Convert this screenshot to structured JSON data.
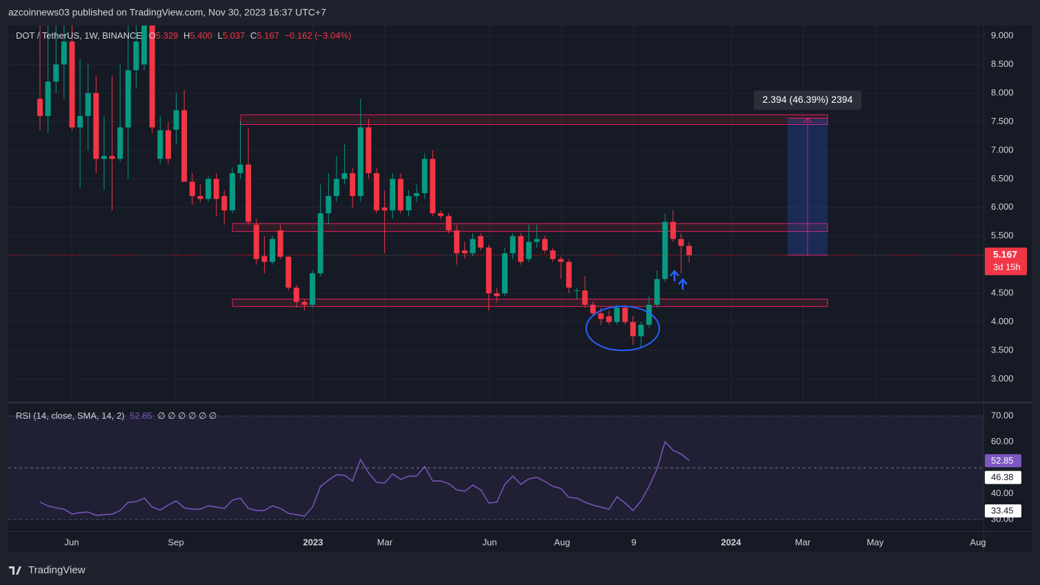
{
  "header": {
    "publisher": "azcoinnews03 published on TradingView.com, Nov 30, 2023 16:37 UTC+7"
  },
  "footer": {
    "brand": "TradingView"
  },
  "chart_data": [
    {
      "type": "candlestick",
      "symbol": "DOT / TetherUS, 1W, BINANCE",
      "ohlc_legend": [
        {
          "key": "O",
          "text": "5.329"
        },
        {
          "key": "H",
          "text": "5.400"
        },
        {
          "key": "L",
          "text": "5.037"
        },
        {
          "key": "C",
          "text": "5.167"
        }
      ],
      "change": "−0.162 (−3.04%)",
      "x_labels": [
        "Jun",
        "Sep",
        "2023",
        "Mar",
        "Jun",
        "Aug",
        "9",
        "2024",
        "Mar",
        "May",
        "Aug"
      ],
      "up_color": "#089981",
      "down_color": "#f23645",
      "open": [
        7.9,
        7.6,
        8.2,
        8.5,
        8.9,
        7.4,
        7.6,
        8.0,
        6.85,
        6.9,
        6.85,
        7.4,
        8.4,
        8.5,
        9.2,
        6.85,
        7.35,
        7.36,
        7.7,
        6.45,
        6.2,
        6.15,
        6.5,
        6.2,
        5.95,
        6.6,
        6.75,
        5.7,
        5.15,
        5.05,
        5.6,
        5.14,
        4.6,
        4.35,
        4.3,
        4.85,
        5.9,
        6.2,
        6.5,
        6.6,
        6.2,
        7.4,
        6.6,
        6.0,
        5.95,
        6.5,
        5.95,
        6.2,
        6.25,
        6.85,
        5.9,
        5.85,
        5.6,
        5.25,
        5.2,
        5.5,
        5.3,
        4.5,
        4.5,
        5.2,
        5.5,
        5.1,
        5.4,
        5.45,
        5.25,
        5.1,
        5.05,
        4.55,
        4.55,
        4.3,
        4.15,
        4.1,
        4.0,
        4.25,
        4.0,
        3.75,
        3.95,
        4.3,
        4.75,
        5.75,
        5.45,
        5.329
      ],
      "high": [
        9.8,
        9.6,
        9.5,
        9.6,
        9.4,
        8.6,
        8.5,
        8.3,
        7.6,
        8.3,
        8.5,
        9.3,
        9.5,
        9.7,
        9.4,
        7.6,
        7.5,
        8.0,
        8.05,
        6.6,
        6.4,
        6.55,
        6.6,
        6.3,
        6.7,
        7.5,
        7.4,
        5.8,
        5.5,
        5.5,
        5.7,
        5.15,
        4.65,
        4.4,
        4.9,
        6.4,
        6.6,
        6.9,
        7.1,
        6.7,
        7.9,
        7.55,
        6.7,
        6.3,
        6.6,
        6.6,
        6.3,
        6.4,
        6.95,
        7.0,
        5.95,
        5.9,
        5.7,
        5.4,
        5.55,
        5.55,
        5.35,
        4.6,
        5.3,
        5.55,
        5.55,
        5.7,
        5.7,
        5.5,
        5.3,
        5.15,
        5.1,
        4.6,
        4.8,
        4.35,
        4.25,
        4.2,
        4.3,
        4.3,
        4.1,
        4.0,
        4.45,
        4.9,
        5.9,
        5.95,
        5.55,
        5.4
      ],
      "low": [
        7.35,
        7.3,
        8.0,
        7.9,
        7.35,
        6.35,
        7.0,
        6.6,
        6.3,
        5.95,
        6.8,
        6.5,
        8.1,
        8.4,
        7.3,
        6.75,
        6.75,
        7.1,
        6.45,
        6.05,
        6.1,
        6.1,
        5.85,
        5.7,
        5.9,
        6.5,
        5.7,
        5.0,
        4.85,
        5.0,
        5.1,
        4.55,
        4.25,
        4.2,
        4.25,
        4.8,
        5.7,
        6.1,
        6.4,
        6.0,
        6.1,
        6.5,
        5.9,
        5.2,
        5.8,
        5.9,
        5.85,
        6.1,
        6.15,
        5.85,
        5.8,
        5.55,
        5.0,
        5.1,
        5.15,
        5.25,
        4.2,
        4.35,
        4.45,
        5.1,
        5.0,
        5.05,
        5.3,
        5.2,
        5.05,
        4.75,
        4.5,
        4.4,
        4.25,
        4.1,
        3.95,
        3.95,
        3.95,
        3.95,
        3.6,
        3.55,
        3.9,
        4.25,
        4.7,
        5.4,
        4.85,
        5.037
      ],
      "close": [
        7.6,
        8.2,
        8.5,
        8.9,
        7.4,
        7.6,
        8.0,
        6.85,
        6.9,
        6.85,
        7.4,
        8.4,
        8.9,
        9.2,
        7.4,
        7.35,
        6.85,
        7.7,
        6.45,
        6.2,
        6.15,
        6.5,
        6.15,
        5.95,
        6.6,
        6.75,
        5.75,
        5.1,
        5.05,
        5.45,
        5.14,
        4.6,
        4.35,
        4.3,
        4.85,
        5.9,
        6.2,
        6.5,
        6.6,
        6.2,
        7.4,
        6.6,
        5.95,
        5.95,
        6.5,
        5.95,
        6.2,
        6.25,
        6.85,
        5.9,
        5.85,
        5.6,
        5.2,
        5.2,
        5.45,
        5.3,
        4.5,
        4.45,
        5.2,
        5.5,
        5.05,
        5.4,
        5.45,
        5.25,
        5.1,
        5.05,
        4.6,
        4.55,
        4.3,
        4.15,
        4.05,
        4.0,
        4.25,
        4.0,
        3.75,
        3.95,
        4.3,
        4.75,
        5.75,
        5.45,
        5.329,
        5.167
      ],
      "ylim": [
        2.61,
        9.18
      ],
      "yticks": [
        {
          "value": 9.0,
          "label": "9.000"
        },
        {
          "value": 8.5,
          "label": "8.500"
        },
        {
          "value": 8.0,
          "label": "8.000"
        },
        {
          "value": 7.5,
          "label": "7.500"
        },
        {
          "value": 7.0,
          "label": "7.000"
        },
        {
          "value": 6.5,
          "label": "6.500"
        },
        {
          "value": 6.0,
          "label": "6.000"
        },
        {
          "value": 5.5,
          "label": "5.500"
        },
        {
          "value": 4.5,
          "label": "4.500"
        },
        {
          "value": 4.0,
          "label": "4.000"
        },
        {
          "value": 3.5,
          "label": "3.500"
        },
        {
          "value": 3.0,
          "label": "3.000"
        }
      ],
      "grid": true,
      "last_price": {
        "value": 5.167,
        "label": "5.167"
      },
      "countdown": "3d 15h",
      "zones": [
        {
          "low": 7.45,
          "high": 7.62
        },
        {
          "low": 5.58,
          "high": 5.72
        },
        {
          "low": 4.27,
          "high": 4.4
        }
      ],
      "measure": {
        "from": 5.167,
        "to": 7.561,
        "label": "2.394 (46.39%) 2394"
      }
    },
    {
      "type": "line",
      "title": "RSI (14, close, SMA, 14, 2)",
      "placeholders": "∅ ∅ ∅ ∅ ∅ ∅",
      "color": "#7e57c2",
      "values": [
        36.7,
        35.3,
        34.5,
        34,
        32.1,
        32.7,
        32.9,
        31.6,
        31.9,
        32.1,
        33.5,
        36.7,
        36.9,
        38.3,
        34.8,
        33.7,
        35.6,
        37.2,
        34.5,
        34,
        34,
        35.3,
        34.8,
        34.3,
        37.5,
        38.3,
        34.3,
        33.5,
        33.5,
        35.3,
        34.3,
        32.4,
        31.9,
        31.3,
        34.8,
        42.8,
        45.2,
        47.3,
        47.1,
        44.9,
        53.2,
        48.1,
        44.4,
        44.1,
        47.6,
        45.5,
        46.8,
        46.8,
        50.5,
        44.9,
        44.9,
        43.9,
        41.5,
        40.9,
        43.3,
        41.5,
        36.4,
        36.7,
        43.6,
        46.8,
        43.6,
        45.7,
        46.3,
        44.7,
        42.8,
        42,
        38.5,
        38.3,
        36.7,
        35.6,
        34.8,
        34,
        38.8,
        36.4,
        33.5,
        37.2,
        42.8,
        49.5,
        60.1,
        56.7,
        55.3,
        52.85
      ],
      "badges": [
        46.38,
        33.45
      ],
      "levels": [
        70,
        50,
        30
      ],
      "ylim": [
        25.5,
        74.8
      ],
      "yticks": [
        {
          "value": 70,
          "label": "70.00"
        },
        {
          "value": 60,
          "label": "60.00"
        },
        {
          "value": 40,
          "label": "40.00"
        },
        {
          "value": 30,
          "label": "30.00"
        }
      ]
    }
  ]
}
